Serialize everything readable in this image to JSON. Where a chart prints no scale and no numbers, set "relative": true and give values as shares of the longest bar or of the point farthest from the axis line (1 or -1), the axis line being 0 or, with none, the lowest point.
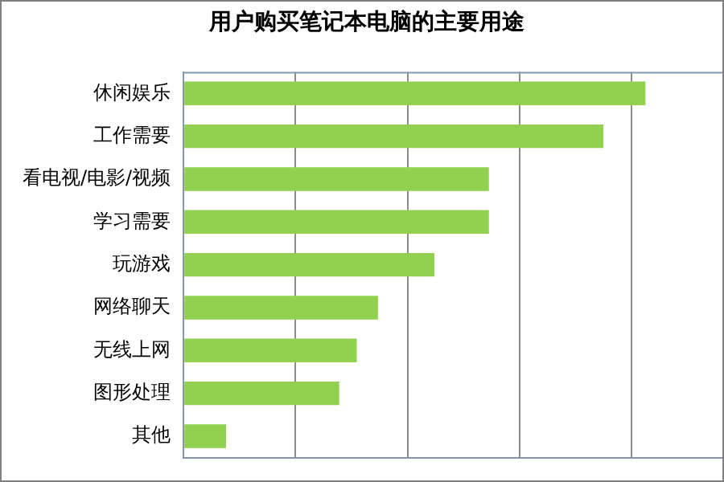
{
  "chart_data": {
    "type": "bar",
    "orientation": "horizontal",
    "relative": true,
    "title": "用户购买笔记本电脑的主要用途",
    "categories": [
      "休闲娱乐",
      "工作需要",
      "看电视/电影/视频",
      "学习需要",
      "玩游戏",
      "网络聊天",
      "无线上网",
      "图形处理",
      "其他"
    ],
    "values": [
      1,
      0.909,
      0.661,
      0.661,
      0.543,
      0.421,
      0.375,
      0.337,
      0.092
    ],
    "color": "#92d050",
    "grid": "x"
  }
}
